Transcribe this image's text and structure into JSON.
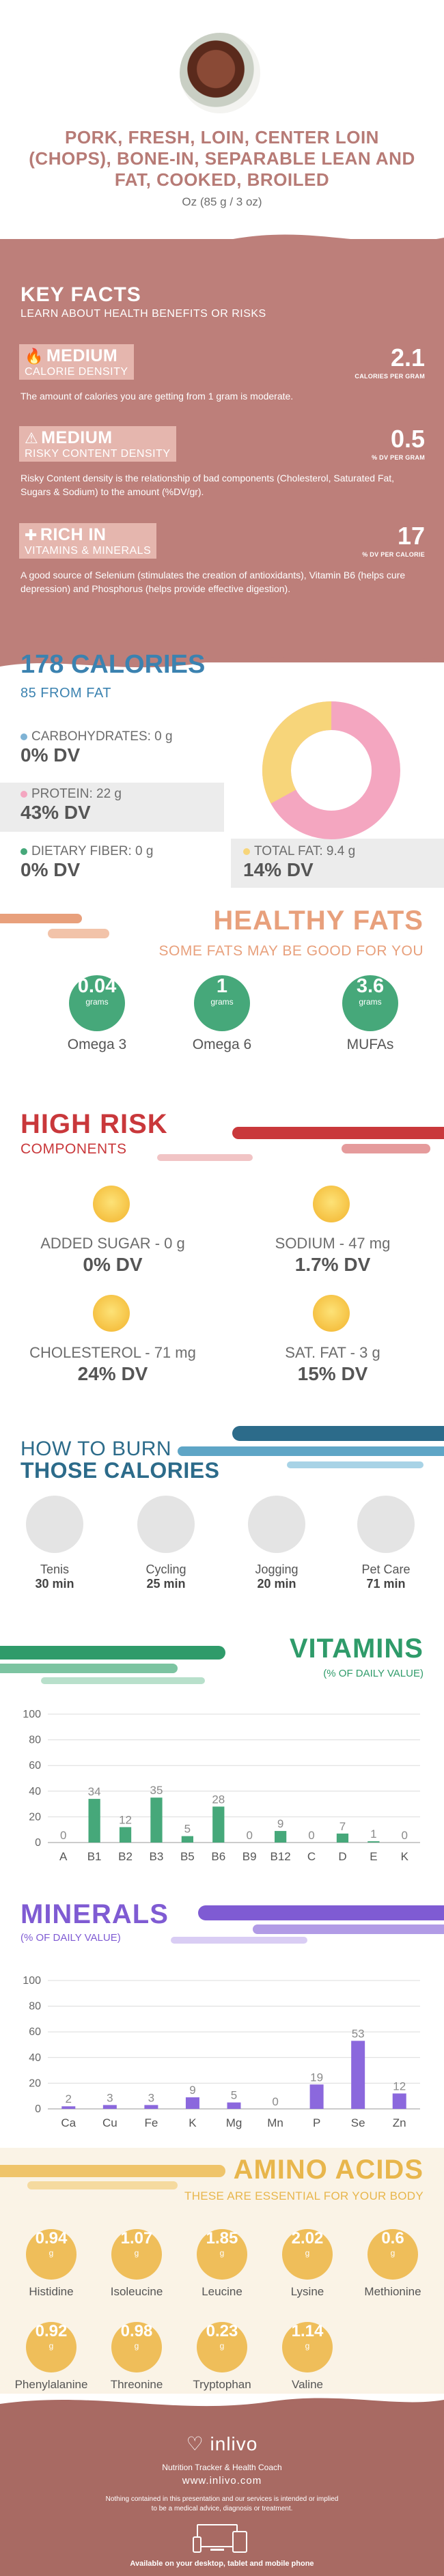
{
  "header": {
    "title": "PORK, FRESH, LOIN, CENTER LOIN (CHOPS), BONE-IN, SEPARABLE LEAN AND FAT, COOKED, BROILED",
    "serving": "Oz (85 g / 3 oz)"
  },
  "key_facts": {
    "title": "KEY FACTS",
    "subtitle": "LEARN ABOUT HEALTH BENEFITS OR RISKS",
    "items": [
      {
        "level": "MEDIUM",
        "label": "CALORIE DENSITY",
        "value": "2.1",
        "unit": "CALORIES PER GRAM",
        "description": "The amount of calories you are getting from 1 gram is moderate.",
        "icon": "flame-icon"
      },
      {
        "level": "MEDIUM",
        "label": "RISKY CONTENT DENSITY",
        "value": "0.5",
        "unit": "% DV PER GRAM",
        "description": "Risky Content density is the relationship of bad components (Cholesterol, Saturated Fat, Sugars & Sodium) to the amount (%DV/gr).",
        "icon": "warning-icon"
      },
      {
        "level": "RICH  IN",
        "label": "VITAMINS & MINERALS",
        "value": "17",
        "unit": "% DV PER CALORIE",
        "description": "A good source of Selenium (stimulates the creation of antioxidants), Vitamin B6 (helps cure depression) and Phosphorus (helps provide effective digestion).",
        "icon": "vitamins-icon"
      }
    ]
  },
  "calories": {
    "title": "178 CALORIES",
    "subtitle": "85 FROM FAT",
    "nutrients": [
      {
        "label": "CARBOHYDRATES: 0 g",
        "dv": "0% DV",
        "color": "#7fb3d5"
      },
      {
        "label": "PROTEIN: 22 g",
        "dv": "43% DV",
        "color": "#f4a6c0"
      },
      {
        "label": "DIETARY FIBER: 0 g",
        "dv": "0% DV",
        "color": "#46a87a"
      },
      {
        "label": "TOTAL FAT: 9.4 g",
        "dv": "14% DV",
        "color": "#f7d57a"
      }
    ],
    "donut": {
      "protein_share": 0.67,
      "fat_share": 0.33,
      "protein_color": "#f4a6c0",
      "fat_color": "#f7d57a"
    }
  },
  "healthy_fats": {
    "title": "HEALTHY FATS",
    "subtitle": "SOME FATS MAY BE GOOD FOR YOU",
    "items": [
      {
        "value": "0.04",
        "unit": "grams",
        "name": "Omega 3"
      },
      {
        "value": "1",
        "unit": "grams",
        "name": "Omega 6"
      },
      {
        "value": "3.6",
        "unit": "grams",
        "name": "MUFAs"
      }
    ]
  },
  "high_risk": {
    "title": "HIGH RISK",
    "subtitle": "COMPONENTS",
    "items": [
      {
        "label": "ADDED SUGAR - 0 g",
        "dv": "0% DV"
      },
      {
        "label": "SODIUM - 47 mg",
        "dv": "1.7% DV"
      },
      {
        "label": "CHOLESTEROL - 71 mg",
        "dv": "24% DV"
      },
      {
        "label": "SAT. FAT - 3 g",
        "dv": "15% DV"
      }
    ]
  },
  "burn": {
    "title1": "HOW TO BURN",
    "title2": "THOSE CALORIES",
    "activities": [
      {
        "name": "Tenis",
        "time": "30 min",
        "icon": "tennis-icon"
      },
      {
        "name": "Cycling",
        "time": "25 min",
        "icon": "cycling-icon"
      },
      {
        "name": "Jogging",
        "time": "20 min",
        "icon": "jogging-icon"
      },
      {
        "name": "Pet Care",
        "time": "71 min",
        "icon": "pet-care-icon"
      }
    ]
  },
  "vitamins": {
    "title": "VITAMINS",
    "subtitle": "(% OF DAILY VALUE)"
  },
  "minerals": {
    "title": "MINERALS",
    "subtitle": "(% OF DAILY VALUE)"
  },
  "chart_data": [
    {
      "type": "bar",
      "categories": [
        "A",
        "B1",
        "B2",
        "B3",
        "B5",
        "B6",
        "B9",
        "B12",
        "C",
        "D",
        "E",
        "K"
      ],
      "values": [
        0,
        34,
        12,
        35,
        5,
        28,
        0,
        9,
        0,
        7,
        1,
        0
      ],
      "yticks": [
        0,
        20,
        40,
        60,
        80,
        100
      ],
      "ylim": [
        0,
        100
      ],
      "grid": true,
      "color": "#46a87a"
    },
    {
      "type": "bar",
      "categories": [
        "Ca",
        "Cu",
        "Fe",
        "K",
        "Mg",
        "Mn",
        "P",
        "Se",
        "Zn"
      ],
      "values": [
        2,
        3,
        3,
        9,
        5,
        0,
        19,
        53,
        12
      ],
      "yticks": [
        0,
        20,
        40,
        60,
        80,
        100
      ],
      "ylim": [
        0,
        100
      ],
      "grid": true,
      "color": "#8b68dd"
    }
  ],
  "amino_acids": {
    "title": "AMINO ACIDS",
    "subtitle": "THESE ARE ESSENTIAL FOR YOUR BODY",
    "items": [
      {
        "value": "0.94",
        "unit": "g",
        "name": "Histidine"
      },
      {
        "value": "1.07",
        "unit": "g",
        "name": "Isoleucine"
      },
      {
        "value": "1.85",
        "unit": "g",
        "name": "Leucine"
      },
      {
        "value": "2.02",
        "unit": "g",
        "name": "Lysine"
      },
      {
        "value": "0.6",
        "unit": "g",
        "name": "Methionine"
      },
      {
        "value": "0.92",
        "unit": "g",
        "name": "Phenylalanine"
      },
      {
        "value": "0.98",
        "unit": "g",
        "name": "Threonine"
      },
      {
        "value": "0.23",
        "unit": "g",
        "name": "Tryptophan"
      },
      {
        "value": "1.14",
        "unit": "g",
        "name": "Valine"
      }
    ]
  },
  "footer": {
    "brand": "inlivo",
    "tagline": "Nutrition Tracker & Health Coach",
    "url": "www.inlivo.com",
    "disclaimer1": "Nothing contained in this presentation and our services is intended or implied",
    "disclaimer2": "to be a medical advice, diagnosis or treatment.",
    "availability": "Available on your desktop, tablet and mobile phone"
  }
}
